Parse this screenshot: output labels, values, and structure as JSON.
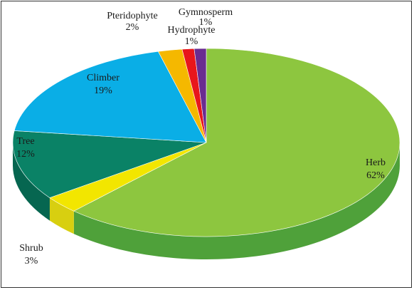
{
  "chart_data": {
    "type": "pie",
    "three_d": true,
    "title": "",
    "slices": [
      {
        "label": "Herb",
        "value": 62,
        "value_label": "62%",
        "color": "#8dc63f",
        "side_color": "#4fa13a"
      },
      {
        "label": "Shrub",
        "value": 3,
        "value_label": "3%",
        "color": "#f2e600",
        "side_color": "#d8cf10"
      },
      {
        "label": "Tree",
        "value": 12,
        "value_label": "12%",
        "color": "#0a8266",
        "side_color": "#066650"
      },
      {
        "label": "Climber",
        "value": 19,
        "value_label": "19%",
        "color": "#0aaee6",
        "side_color": "#088fbe"
      },
      {
        "label": "Pteridophyte",
        "value": 2,
        "value_label": "2%",
        "color": "#f5b800",
        "side_color": "#d19c00"
      },
      {
        "label": "Hydrophyte",
        "value": 1,
        "value_label": "1%",
        "color": "#e8161b",
        "side_color": "#b81014"
      },
      {
        "label": "Gymnosperm",
        "value": 1,
        "value_label": "1%",
        "color": "#6a2c91",
        "side_color": "#4f1f6e"
      }
    ]
  }
}
